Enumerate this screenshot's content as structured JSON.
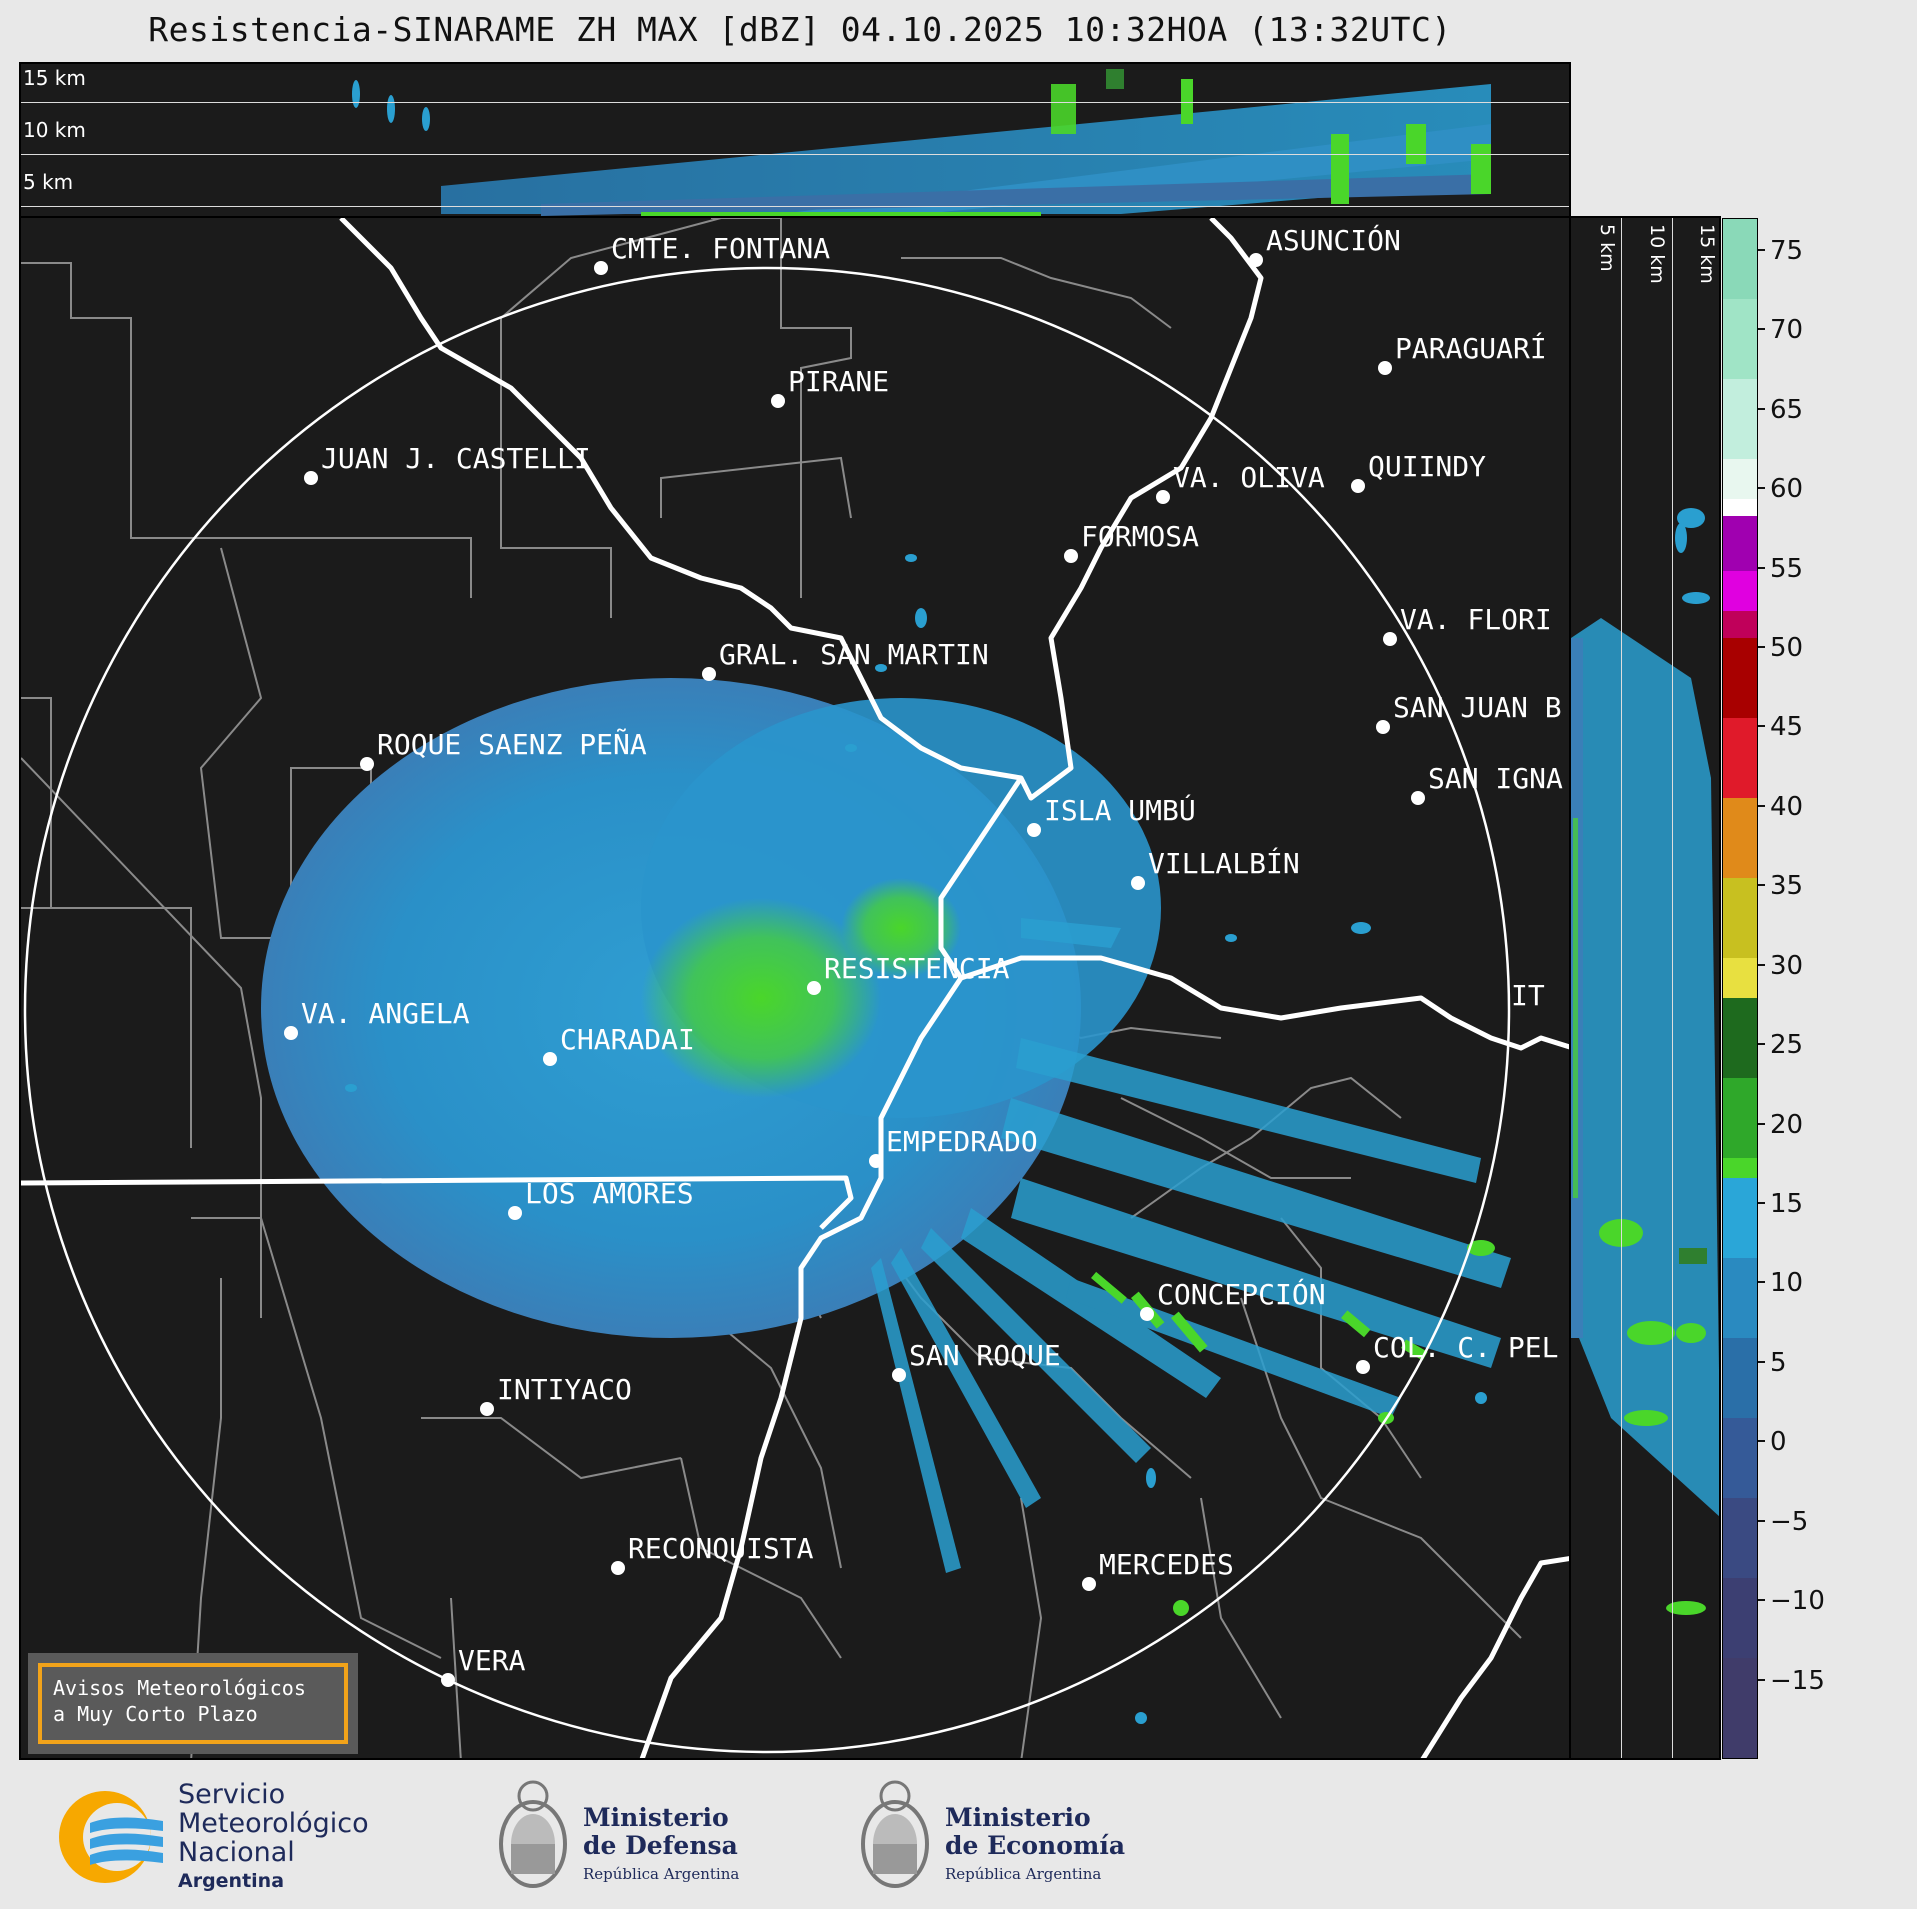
{
  "title": "Resistencia-SINARAME ZH MAX [dBZ] 04.10.2025 10:32HOA (13:32UTC)",
  "height_axis": {
    "top_labels": [
      "15 km",
      "10 km",
      "5 km"
    ],
    "side_labels": [
      "5 km",
      "10 km",
      "15 km"
    ]
  },
  "cities": [
    {
      "name": "CMTE. FONTANA"
    },
    {
      "name": "ASUNCIÓN"
    },
    {
      "name": "PIRANE"
    },
    {
      "name": "PARAGUARÍ"
    },
    {
      "name": "JUAN J. CASTELLI"
    },
    {
      "name": "VA. OLIVA"
    },
    {
      "name": "QUIINDY"
    },
    {
      "name": "FORMOSA"
    },
    {
      "name": "VA. FLORI"
    },
    {
      "name": "GRAL. SAN MARTIN"
    },
    {
      "name": "SAN JUAN B"
    },
    {
      "name": "ROQUE SAENZ PEÑA"
    },
    {
      "name": "SAN IGNA"
    },
    {
      "name": "ISLA UMBÚ"
    },
    {
      "name": "VILLALBÍN"
    },
    {
      "name": "RESISTENCIA"
    },
    {
      "name": "IT"
    },
    {
      "name": "VA. ANGELA"
    },
    {
      "name": "CHARADAI"
    },
    {
      "name": "EMPEDRADO"
    },
    {
      "name": "LOS AMORES"
    },
    {
      "name": "CONCEPCIÓN"
    },
    {
      "name": "COL. C. PEL"
    },
    {
      "name": "SAN ROQUE"
    },
    {
      "name": "INTIYACO"
    },
    {
      "name": "RECONQUISTA"
    },
    {
      "name": "MERCEDES"
    },
    {
      "name": "VERA"
    }
  ],
  "colorbar": {
    "ticks": [
      "75",
      "70",
      "65",
      "60",
      "55",
      "50",
      "45",
      "40",
      "35",
      "30",
      "25",
      "20",
      "15",
      "10",
      "5",
      "0",
      "−5",
      "−10",
      "−15"
    ],
    "range": [
      -20,
      77
    ]
  },
  "notice": {
    "line1": "Avisos Meteorológicos",
    "line2": "a Muy Corto Plazo"
  },
  "logos": {
    "smn": {
      "line1": "Servicio",
      "line2": "Meteorológico",
      "line3": "Nacional",
      "line4": "Argentina"
    },
    "defensa": {
      "line1": "Ministerio",
      "line2": "de Defensa",
      "line3": "República Argentina"
    },
    "economia": {
      "line1": "Ministerio",
      "line2": "de Economía",
      "line3": "República Argentina"
    }
  },
  "colors": {
    "background": "#1b1b1b",
    "echo_blue": "#2a9fd0",
    "echo_green": "#4ad62a",
    "notice_border": "#f2a31a",
    "smn_orange": "#f7a800",
    "smn_blue": "#3aa0e0"
  }
}
